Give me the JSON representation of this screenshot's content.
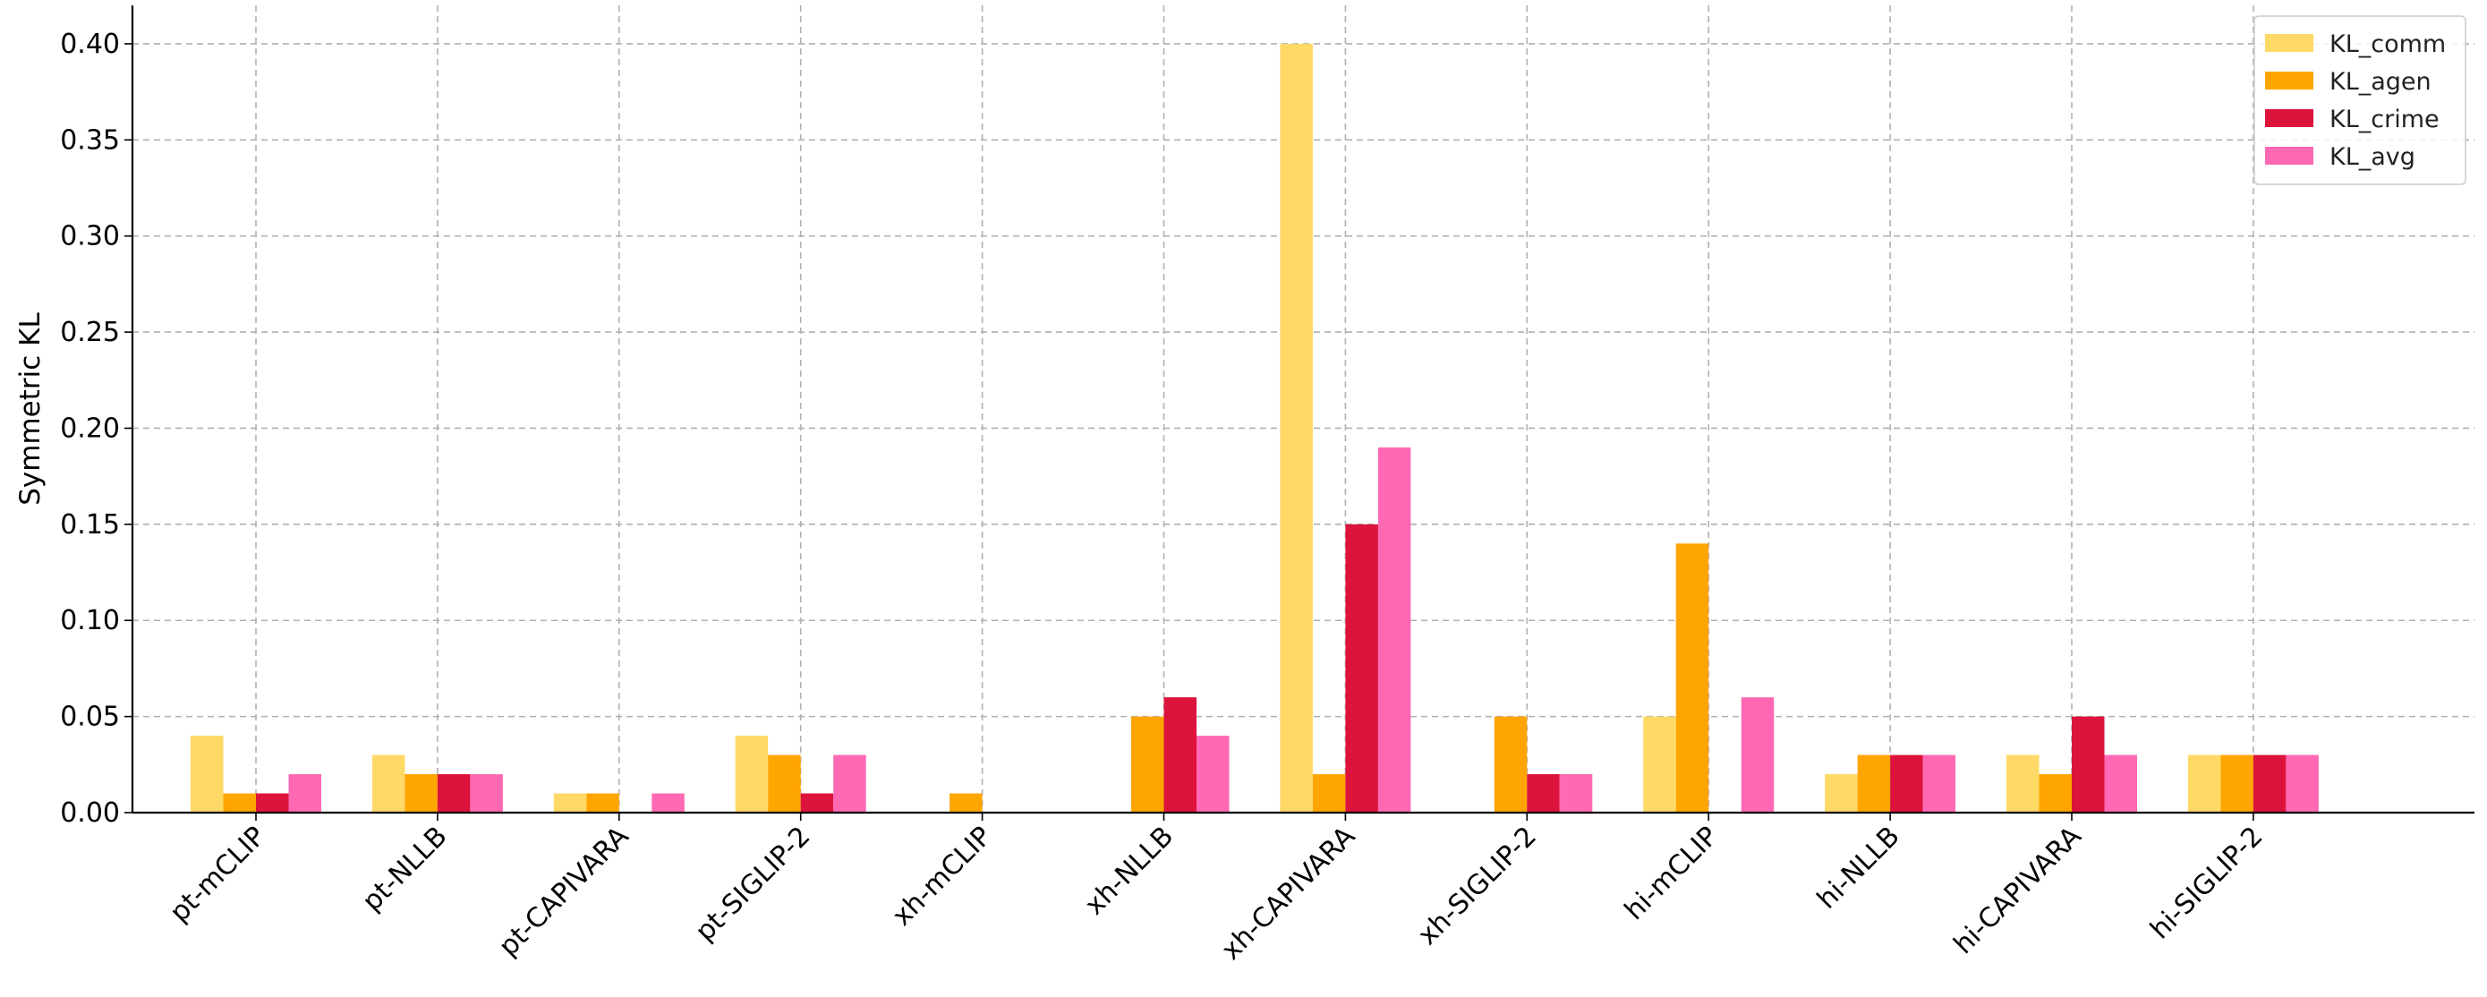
{
  "chart_data": {
    "type": "bar",
    "title": "",
    "xlabel": "",
    "ylabel": "Symmetric KL",
    "ylim": [
      0,
      0.42
    ],
    "yticks": [
      "0.00",
      "0.05",
      "0.10",
      "0.15",
      "0.20",
      "0.25",
      "0.30",
      "0.35",
      "0.40"
    ],
    "grid": true,
    "legend_position": "top-right",
    "categories": [
      "pt-mCLIP",
      "pt-NLLB",
      "pt-CAPIVARA",
      "pt-SIGLIP-2",
      "xh-mCLIP",
      "xh-NLLB",
      "xh-CAPIVARA",
      "xh-SIGLIP-2",
      "hi-mCLIP",
      "hi-NLLB",
      "hi-CAPIVARA",
      "hi-SIGLIP-2"
    ],
    "series": [
      {
        "name": "KL_comm",
        "color": "#FFD966",
        "values": [
          0.04,
          0.03,
          0.01,
          0.04,
          0.0,
          0.0,
          0.4,
          0.0,
          0.05,
          0.02,
          0.03,
          0.03
        ]
      },
      {
        "name": "KL_agen",
        "color": "#FFA500",
        "values": [
          0.01,
          0.02,
          0.01,
          0.03,
          0.01,
          0.05,
          0.02,
          0.05,
          0.14,
          0.03,
          0.02,
          0.03
        ]
      },
      {
        "name": "KL_crime",
        "color": "#DC143C",
        "values": [
          0.01,
          0.02,
          0.0,
          0.01,
          0.0,
          0.06,
          0.15,
          0.02,
          0.0,
          0.03,
          0.05,
          0.03
        ]
      },
      {
        "name": "KL_avg",
        "color": "#FF69B4",
        "values": [
          0.02,
          0.02,
          0.01,
          0.03,
          0.0,
          0.04,
          0.19,
          0.02,
          0.06,
          0.03,
          0.03,
          0.03
        ]
      }
    ]
  }
}
